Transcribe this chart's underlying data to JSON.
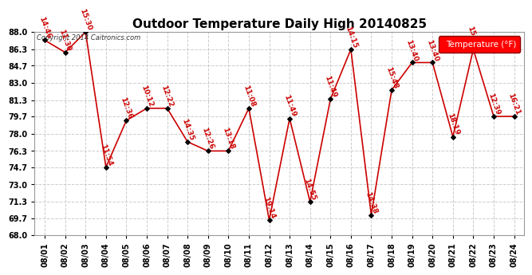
{
  "title": "Outdoor Temperature Daily High 20140825",
  "copyright": "Copyright 2014 Caitronics.com",
  "legend_label": "Temperature (°F)",
  "dates": [
    "08/01",
    "08/02",
    "08/03",
    "08/04",
    "08/05",
    "08/06",
    "08/07",
    "08/08",
    "08/09",
    "08/10",
    "08/11",
    "08/12",
    "08/13",
    "08/14",
    "08/15",
    "08/16",
    "08/17",
    "08/18",
    "08/19",
    "08/20",
    "08/21",
    "08/22",
    "08/23",
    "08/24"
  ],
  "temps": [
    87.2,
    86.0,
    88.0,
    74.7,
    79.3,
    80.5,
    80.5,
    77.2,
    76.3,
    76.3,
    80.5,
    69.5,
    79.5,
    71.3,
    81.4,
    86.3,
    70.0,
    82.3,
    85.0,
    85.0,
    77.7,
    86.3,
    79.7,
    79.7
  ],
  "time_labels": [
    "14:46",
    "11:30",
    "15:30",
    "11:54",
    "12:36",
    "10:12",
    "12:22",
    "14:35",
    "12:26",
    "13:18",
    "11:08",
    "19:14",
    "11:49",
    "14:55",
    "11:49",
    "14:15",
    "14:38",
    "15:48",
    "13:40",
    "13:40",
    "18:19",
    "15:00",
    "12:39",
    "16:21"
  ],
  "ylim": [
    68.0,
    88.0
  ],
  "yticks": [
    68.0,
    69.7,
    71.3,
    73.0,
    74.7,
    76.3,
    78.0,
    79.7,
    81.3,
    83.0,
    84.7,
    86.3,
    88.0
  ],
  "line_color": "#cc0000",
  "marker_color": "#000000",
  "label_color": "#cc0000",
  "bg_color": "#ffffff",
  "grid_color": "#cccccc",
  "title_fontsize": 11,
  "label_fontsize": 6.5,
  "tick_fontsize": 7.0,
  "copyright_fontsize": 6.0
}
